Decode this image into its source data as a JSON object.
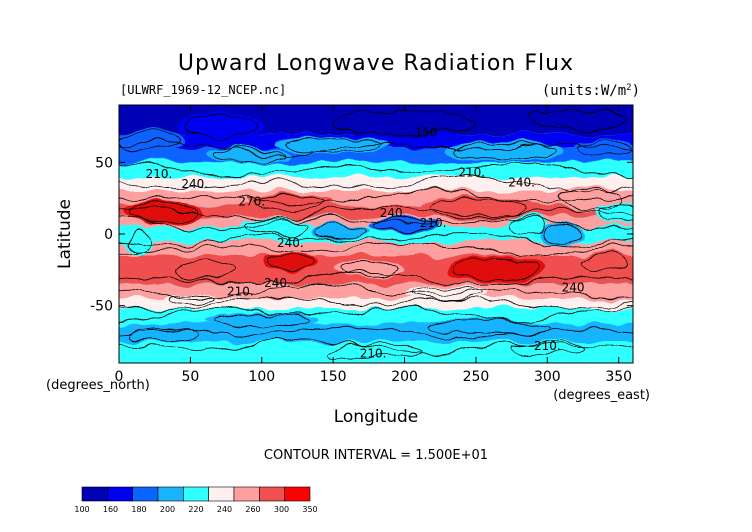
{
  "chart_data": {
    "type": "heatmap",
    "title": "Upward Longwave Radiation Flux",
    "file_label": "[ULWRF_1969-12_NCEP.nc]",
    "units_label": "(units:W/m^2)",
    "xlabel": "Longitude",
    "ylabel": "Latitude",
    "x_unit_label": "(degrees_east)",
    "y_unit_label": "(degrees_north)",
    "xlim": [
      0,
      360
    ],
    "ylim": [
      -90,
      90
    ],
    "x_ticks": [
      "0",
      "50",
      "100",
      "150",
      "200",
      "250",
      "300",
      "350"
    ],
    "y_ticks": [
      "50",
      "0",
      "-50"
    ],
    "contour_interval_label": "CONTOUR INTERVAL = 1.500E+01",
    "contour_labels": [
      {
        "text": "150",
        "lon": 215,
        "lat": 68
      },
      {
        "text": "210.",
        "lon": 28,
        "lat": 39
      },
      {
        "text": "240.",
        "lon": 53,
        "lat": 32
      },
      {
        "text": "210.",
        "lon": 247,
        "lat": 40
      },
      {
        "text": "240.",
        "lon": 282,
        "lat": 33
      },
      {
        "text": "270.",
        "lon": 93,
        "lat": 20
      },
      {
        "text": "240.",
        "lon": 192,
        "lat": 12
      },
      {
        "text": "210.",
        "lon": 220,
        "lat": 5
      },
      {
        "text": "240.",
        "lon": 120,
        "lat": -9
      },
      {
        "text": "240.",
        "lon": 111,
        "lat": -37
      },
      {
        "text": "210.",
        "lon": 85,
        "lat": -43
      },
      {
        "text": "240",
        "lon": 318,
        "lat": -40
      },
      {
        "text": "210.",
        "lon": 178,
        "lat": -86
      },
      {
        "text": "210.",
        "lon": 300,
        "lat": -81
      }
    ],
    "colorbar": {
      "boundaries": [
        "100",
        "160",
        "180",
        "200",
        "220",
        "240",
        "260",
        "300",
        "350"
      ],
      "colors": [
        "#0000b4",
        "#0000f0",
        "#0a64ff",
        "#19b4ff",
        "#2fffff",
        "#fff0f0",
        "#ffa0a0",
        "#f05050",
        "#ff0000"
      ]
    },
    "palette": {
      "lt160": "#0000b4",
      "160_180": "#0000f0",
      "180_195": "#0a64ff",
      "195_210": "#19b4ff",
      "210_225": "#2fffff",
      "225_240": "#fff0f0",
      "240_255": "#ffa0a0",
      "255_270": "#f05050",
      "gt270": "#e01010"
    }
  }
}
